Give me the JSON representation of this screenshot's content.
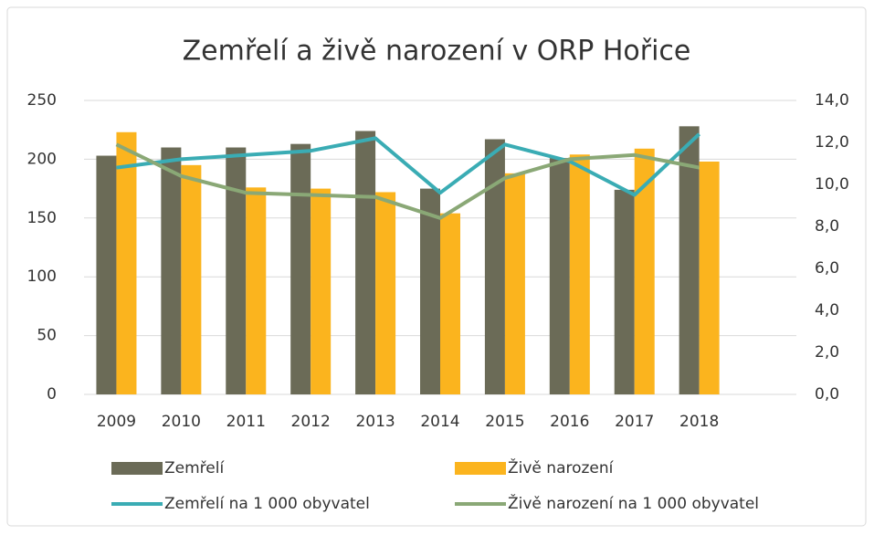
{
  "chart_data": {
    "type": "bar_line",
    "title": "Zemřelí a živě narození v ORP Hořice",
    "categories": [
      "2009",
      "2010",
      "2011",
      "2012",
      "2013",
      "2014",
      "2015",
      "2016",
      "2017",
      "2018",
      null
    ],
    "series": [
      {
        "name": "Zemřelí",
        "type": "bar",
        "color": "#6b6b57",
        "values": [
          203,
          210,
          210,
          213,
          224,
          175,
          217,
          201,
          174,
          228,
          null
        ]
      },
      {
        "name": "Živě narození",
        "type": "bar",
        "color": "#fbb41e",
        "values": [
          223,
          195,
          176,
          175,
          172,
          154,
          188,
          204,
          209,
          198,
          null
        ]
      },
      {
        "name": "Zemřelí na 1 000 obyvatel",
        "type": "line",
        "axis": "y2",
        "color": "#3aacb4",
        "values": [
          10.8,
          11.2,
          11.4,
          11.6,
          12.2,
          9.6,
          11.9,
          11.1,
          9.5,
          12.4,
          null
        ]
      },
      {
        "name": "Živě narození na 1 000 obyvatel",
        "type": "line",
        "axis": "y2",
        "color": "#8aa876",
        "values": [
          11.9,
          10.4,
          9.6,
          9.5,
          9.4,
          8.4,
          10.3,
          11.2,
          11.4,
          10.8,
          null
        ]
      }
    ],
    "ylim": [
      0,
      250
    ],
    "yticks": [
      0,
      50,
      100,
      150,
      200,
      250
    ],
    "y2lim": [
      0,
      14
    ],
    "y2ticks": [
      {
        "value": 0,
        "label": "0,0"
      },
      {
        "value": 2,
        "label": "2,0"
      },
      {
        "value": 4,
        "label": "4,0"
      },
      {
        "value": 6,
        "label": "6,0"
      },
      {
        "value": 8,
        "label": "8,0"
      },
      {
        "value": 10,
        "label": "10,0"
      },
      {
        "value": 12,
        "label": "12,0"
      },
      {
        "value": 14,
        "label": "14,0"
      }
    ],
    "grid": true,
    "legend": "bottom"
  }
}
